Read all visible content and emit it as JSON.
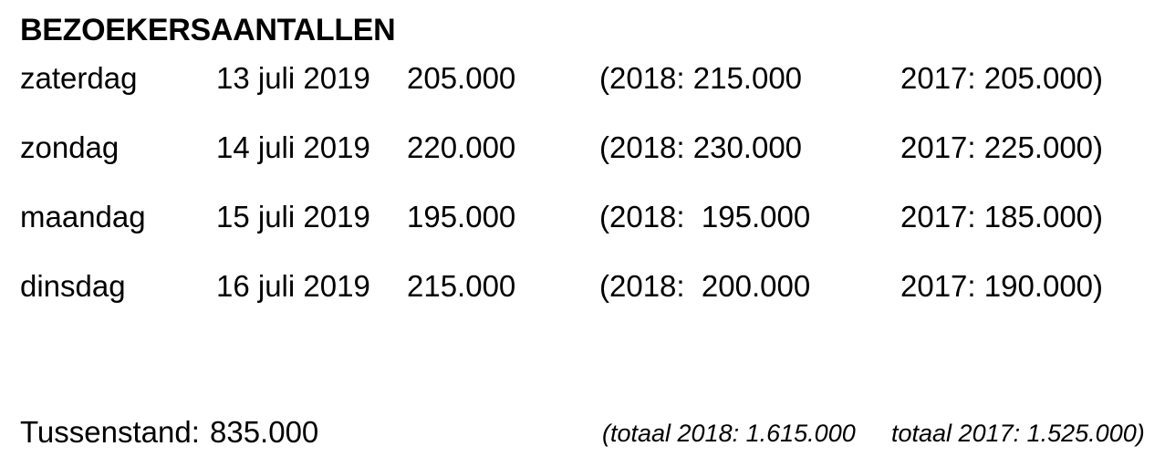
{
  "title": "BEZOEKERSAANTALLEN",
  "colors": {
    "text": "#000000",
    "background": "#ffffff"
  },
  "table": {
    "rows": [
      {
        "day": "zaterdag",
        "date": "13 juli 2019",
        "count": "205.000",
        "prev2018": "(2018: 215.000",
        "prev2017": "2017: 205.000)"
      },
      {
        "day": "zondag",
        "date": "14 juli 2019",
        "count": "220.000",
        "prev2018": "(2018: 230.000",
        "prev2017": "2017: 225.000)"
      },
      {
        "day": "maandag",
        "date": "15 juli 2019",
        "count": "195.000",
        "prev2018": "(2018:  195.000",
        "prev2017": "2017: 185.000)"
      },
      {
        "day": "dinsdag",
        "date": "16 juli 2019",
        "count": "215.000",
        "prev2018": "(2018:  200.000",
        "prev2017": "2017: 190.000)"
      }
    ]
  },
  "summary": {
    "label": "Tussenstand:",
    "value": "835.000",
    "total2018": "(totaal 2018: 1.615.000",
    "total2017": "totaal 2017: 1.525.000)"
  }
}
